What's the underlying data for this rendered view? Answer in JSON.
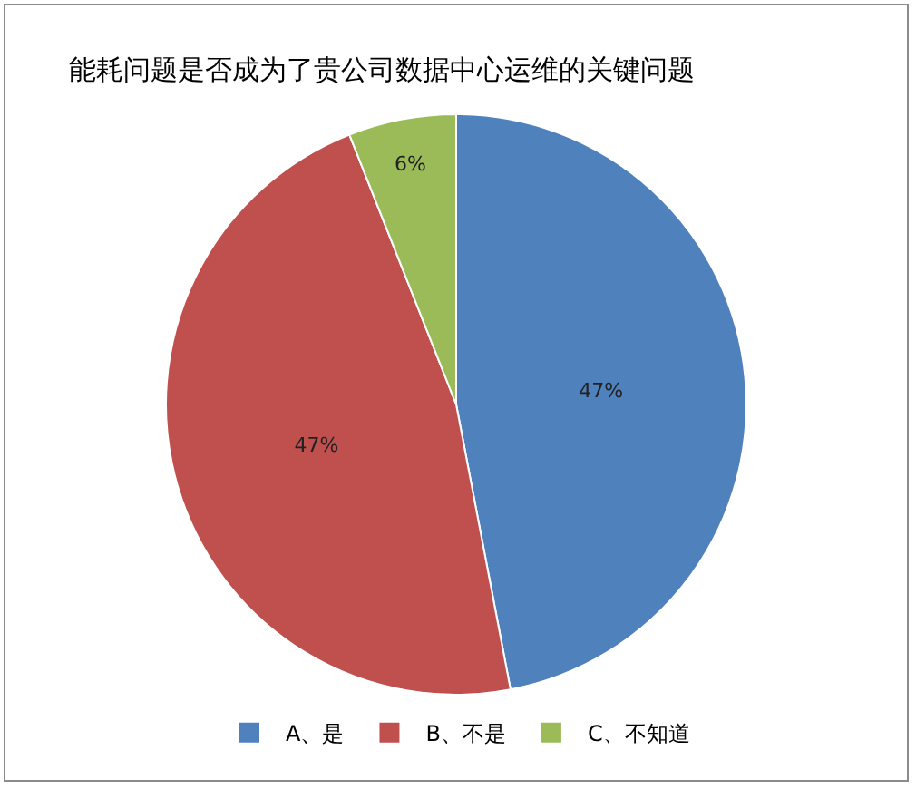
{
  "chart_data": {
    "type": "pie",
    "title": "能耗问题是否成为了贵公司数据中心运维的关键问题",
    "categories": [
      "A、是",
      "B、不是",
      "C、不知道"
    ],
    "values": [
      47,
      47,
      6
    ],
    "colors": [
      "#4f81bd",
      "#c0504d",
      "#9bbb59"
    ],
    "value_labels": [
      "47%",
      "47%",
      "6%"
    ],
    "legend": "bottom"
  }
}
